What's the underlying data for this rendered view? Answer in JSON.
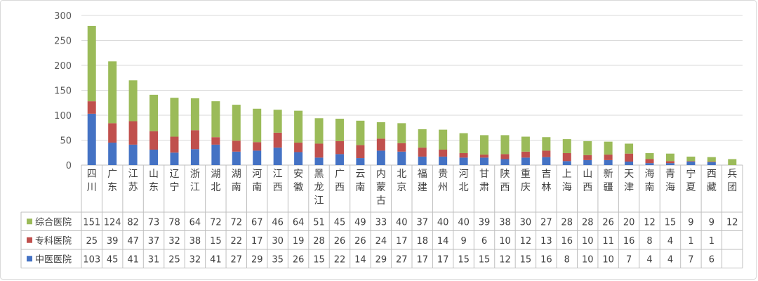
{
  "chart_data": {
    "type": "bar",
    "stacked": true,
    "categories": [
      "四川",
      "广东",
      "江苏",
      "山东",
      "辽宁",
      "浙江",
      "湖北",
      "湖南",
      "河南",
      "江西",
      "安徽",
      "黑龙江",
      "广西",
      "云南",
      "内蒙古",
      "北京",
      "福建",
      "贵州",
      "河北",
      "甘肃",
      "陕西",
      "重庆",
      "吉林",
      "上海",
      "山西",
      "新疆",
      "天津",
      "海南",
      "青海",
      "宁夏",
      "西藏",
      "兵团"
    ],
    "series": [
      {
        "name": "中医医院",
        "color": "#4472c4",
        "values": [
          103,
          45,
          41,
          31,
          25,
          32,
          41,
          27,
          29,
          35,
          26,
          15,
          22,
          14,
          29,
          27,
          17,
          17,
          15,
          15,
          12,
          15,
          16,
          8,
          10,
          10,
          7,
          4,
          4,
          7,
          6,
          null
        ]
      },
      {
        "name": "专科医院",
        "color": "#c0504d",
        "values": [
          25,
          39,
          47,
          37,
          32,
          38,
          15,
          22,
          17,
          30,
          19,
          28,
          26,
          26,
          24,
          17,
          18,
          14,
          9,
          6,
          10,
          12,
          13,
          16,
          10,
          11,
          16,
          8,
          4,
          1,
          1,
          null
        ]
      },
      {
        "name": "综合医院",
        "color": "#9bbb59",
        "values": [
          151,
          124,
          82,
          73,
          78,
          64,
          72,
          72,
          67,
          46,
          64,
          51,
          45,
          49,
          33,
          40,
          37,
          40,
          40,
          39,
          38,
          30,
          27,
          28,
          28,
          26,
          20,
          12,
          15,
          9,
          9,
          12
        ]
      }
    ],
    "ylim": [
      0,
      300
    ],
    "yticks": [
      0,
      50,
      100,
      150,
      200,
      250,
      300
    ],
    "grid": true,
    "legend": "data-table-left",
    "title": "",
    "xlabel": "",
    "ylabel": ""
  }
}
